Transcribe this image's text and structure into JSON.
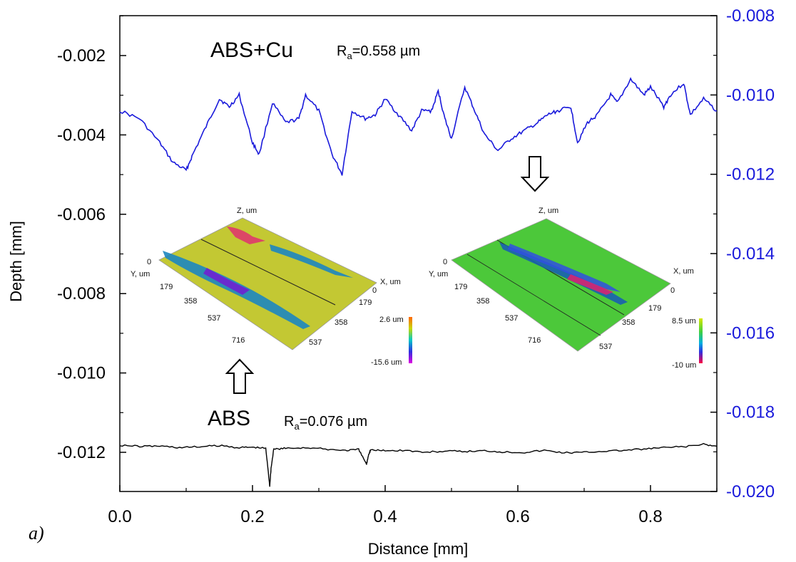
{
  "chart_data": {
    "type": "line",
    "xlabel": "Distance [mm]",
    "ylabel": "Depth [mm]",
    "xlim": [
      0.0,
      0.9
    ],
    "ylim_left": [
      -0.013,
      -0.0
    ],
    "ylim_right": [
      -0.02,
      -0.008
    ],
    "x_ticks": [
      "0.0",
      "0.2",
      "0.4",
      "0.6",
      "0.8"
    ],
    "y_ticks_left": [
      "-0.002",
      "-0.004",
      "-0.006",
      "-0.008",
      "-0.010",
      "-0.012"
    ],
    "y_ticks_right": [
      "-0.008",
      "-0.010",
      "-0.012",
      "-0.014",
      "-0.016",
      "-0.018",
      "-0.020"
    ],
    "grid": false,
    "series": [
      {
        "name": "ABS+Cu",
        "axis": "right",
        "color": "#1a1adb",
        "x": [
          0.0,
          0.03,
          0.06,
          0.08,
          0.1,
          0.11,
          0.13,
          0.15,
          0.165,
          0.18,
          0.2,
          0.21,
          0.23,
          0.25,
          0.27,
          0.28,
          0.3,
          0.32,
          0.335,
          0.35,
          0.37,
          0.385,
          0.4,
          0.42,
          0.44,
          0.455,
          0.47,
          0.48,
          0.49,
          0.5,
          0.52,
          0.535,
          0.55,
          0.57,
          0.59,
          0.61,
          0.63,
          0.645,
          0.66,
          0.68,
          0.69,
          0.705,
          0.72,
          0.74,
          0.75,
          0.77,
          0.79,
          0.8,
          0.82,
          0.83,
          0.85,
          0.86,
          0.88,
          0.9
        ],
        "y": [
          -0.0104,
          -0.0106,
          -0.0112,
          -0.0117,
          -0.0119,
          -0.0115,
          -0.0108,
          -0.0101,
          -0.0103,
          -0.01,
          -0.0112,
          -0.0115,
          -0.0102,
          -0.0107,
          -0.0106,
          -0.01,
          -0.0104,
          -0.0115,
          -0.012,
          -0.0104,
          -0.0106,
          -0.0105,
          -0.0101,
          -0.0105,
          -0.0109,
          -0.0104,
          -0.0104,
          -0.0099,
          -0.0106,
          -0.0111,
          -0.0098,
          -0.0104,
          -0.011,
          -0.0114,
          -0.0111,
          -0.0109,
          -0.0107,
          -0.0105,
          -0.0104,
          -0.0103,
          -0.0112,
          -0.0107,
          -0.0105,
          -0.01,
          -0.0102,
          -0.0096,
          -0.01,
          -0.0098,
          -0.0103,
          -0.01,
          -0.0097,
          -0.0105,
          -0.0101,
          -0.0104
        ]
      },
      {
        "name": "ABS",
        "axis": "left",
        "color": "#000000",
        "x": [
          0.0,
          0.03,
          0.06,
          0.09,
          0.12,
          0.15,
          0.18,
          0.2,
          0.22,
          0.226,
          0.228,
          0.232,
          0.25,
          0.28,
          0.31,
          0.34,
          0.36,
          0.372,
          0.375,
          0.378,
          0.4,
          0.43,
          0.46,
          0.49,
          0.52,
          0.55,
          0.58,
          0.61,
          0.64,
          0.67,
          0.7,
          0.73,
          0.76,
          0.79,
          0.82,
          0.85,
          0.88,
          0.9
        ],
        "y": [
          -0.01182,
          -0.01185,
          -0.01184,
          -0.01188,
          -0.01186,
          -0.01183,
          -0.01188,
          -0.01187,
          -0.0119,
          -0.01285,
          -0.0124,
          -0.01192,
          -0.0119,
          -0.01188,
          -0.01192,
          -0.01195,
          -0.01193,
          -0.0123,
          -0.01205,
          -0.01194,
          -0.01196,
          -0.01195,
          -0.012,
          -0.01197,
          -0.01198,
          -0.01196,
          -0.01199,
          -0.012,
          -0.01195,
          -0.01201,
          -0.012,
          -0.01197,
          -0.01195,
          -0.01192,
          -0.01188,
          -0.01186,
          -0.0118,
          -0.01185
        ]
      }
    ]
  },
  "annotations": {
    "abs_cu_label": "ABS+Cu",
    "abs_cu_ra": "R",
    "abs_cu_ra_sub": "a",
    "abs_cu_ra_value": "=0.558 µm",
    "abs_label": "ABS",
    "abs_ra": "R",
    "abs_ra_sub": "a",
    "abs_ra_value": "=0.076 µm",
    "panel_label": "a)"
  },
  "insets": {
    "left": {
      "surface_color": "#c3c833",
      "z_label": "Z, um",
      "y_label": "Y, um",
      "x_label": "X, um",
      "y_origin": "0",
      "x_origin": "0",
      "y_ticks": [
        "179",
        "358",
        "537",
        "716"
      ],
      "x_ticks": [
        "179",
        "358",
        "537"
      ],
      "scale_max": "2.6 um",
      "scale_min": "-15.6 um"
    },
    "right": {
      "surface_color": "#4cc83a",
      "z_label": "Z, um",
      "y_label": "Y, um",
      "x_label": "X, um",
      "y_origin": "0",
      "x_origin": "0",
      "y_ticks": [
        "179",
        "358",
        "537",
        "716"
      ],
      "x_ticks": [
        "179",
        "358",
        "537"
      ],
      "scale_max": "8.5 um",
      "scale_min": "-10 um"
    }
  },
  "colors": {
    "right_axis": "#1a1adb",
    "left_axis": "#000000"
  }
}
